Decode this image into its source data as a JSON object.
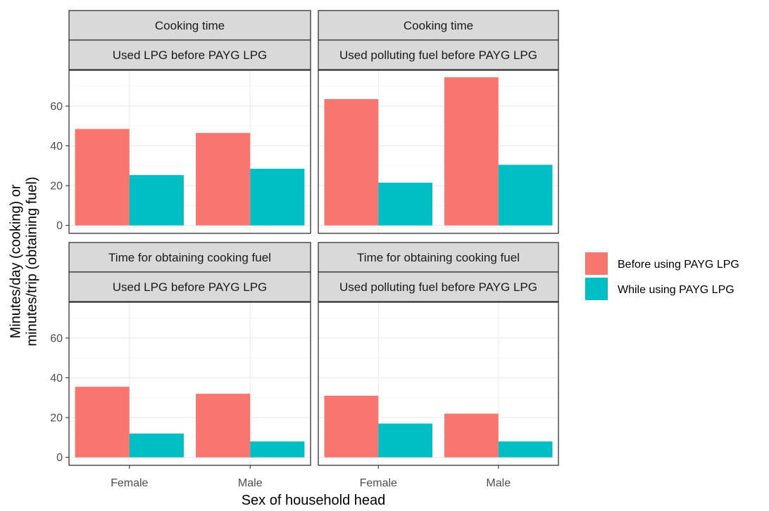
{
  "chart_data": {
    "type": "bar",
    "xlabel": "Sex of household head",
    "ylabel_lines": [
      "Minutes/day (cooking) or",
      "minutes/trip (obtaining fuel)"
    ],
    "ylim": [
      0,
      75
    ],
    "yticks": [
      "0",
      "20",
      "40",
      "60"
    ],
    "categories": [
      "Female",
      "Male"
    ],
    "grid": true,
    "legend": {
      "placement": "right",
      "entries": [
        {
          "label": "Before using PAYG LPG",
          "color": "#f8766d"
        },
        {
          "label": "While using PAYG LPG",
          "color": "#00bfc4"
        }
      ]
    },
    "panels": [
      {
        "strip_top": "Cooking time",
        "strip_bottom": "Used LPG before PAYG LPG",
        "series": [
          {
            "name": "Before using PAYG LPG",
            "values": [
              48.5,
              46.5
            ]
          },
          {
            "name": "While using PAYG LPG",
            "values": [
              25.3,
              28.5
            ]
          }
        ]
      },
      {
        "strip_top": "Cooking time",
        "strip_bottom": "Used polluting fuel before PAYG LPG",
        "series": [
          {
            "name": "Before using PAYG LPG",
            "values": [
              63.5,
              74.5
            ]
          },
          {
            "name": "While using PAYG LPG",
            "values": [
              21.5,
              30.5
            ]
          }
        ]
      },
      {
        "strip_top": "Time for obtaining cooking fuel",
        "strip_bottom": "Used LPG before PAYG LPG",
        "series": [
          {
            "name": "Before using PAYG LPG",
            "values": [
              35.5,
              32.0
            ]
          },
          {
            "name": "While using PAYG LPG",
            "values": [
              12.0,
              8.0
            ]
          }
        ]
      },
      {
        "strip_top": "Time for obtaining cooking fuel",
        "strip_bottom": "Used polluting fuel before PAYG LPG",
        "series": [
          {
            "name": "Before using PAYG LPG",
            "values": [
              31.0,
              22.0
            ]
          },
          {
            "name": "While using PAYG LPG",
            "values": [
              17.0,
              8.0
            ]
          }
        ]
      }
    ]
  }
}
